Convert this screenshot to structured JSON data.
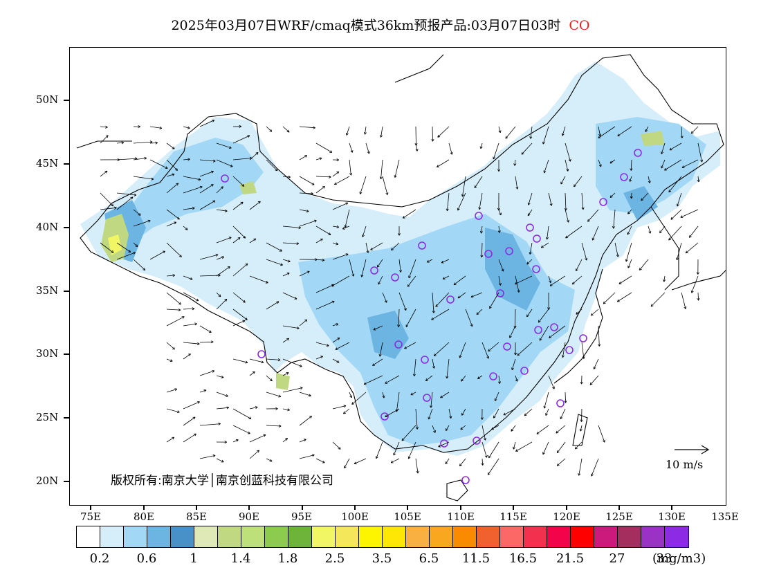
{
  "title": {
    "text": "2025年03月07日WRF/cmaq模式36km预报产品:03月07日03时",
    "species": "CO",
    "species_color": "#e8201e"
  },
  "axes": {
    "lat_labels": [
      "50N",
      "45N",
      "40N",
      "35N",
      "30N",
      "25N",
      "20N"
    ],
    "lon_labels": [
      "75E",
      "80E",
      "85E",
      "90E",
      "95E",
      "100E",
      "105E",
      "110E",
      "115E",
      "120E",
      "125E",
      "130E",
      "135E"
    ]
  },
  "copyright": "版权所有:南京大学│南京创蓝科技有限公司",
  "reference_vector": {
    "label": "10 m/s"
  },
  "colorbar": {
    "colors": [
      "#ffffff",
      "#d6eefa",
      "#a2d8f5",
      "#6cb5e3",
      "#4891c8",
      "#dfe9b8",
      "#c0d882",
      "#bde07a",
      "#8ccb4e",
      "#6fb43a",
      "#f1f664",
      "#f4e75a",
      "#fdf400",
      "#fee705",
      "#f9b041",
      "#f8a71e",
      "#fa8a00",
      "#f0612f",
      "#fb6865",
      "#f4304f",
      "#f3034a",
      "#fe0000",
      "#cc1a7c",
      "#a42e5d",
      "#9a32c6",
      "#8c2ae6"
    ],
    "labels": [
      "0.2",
      "0.6",
      "1",
      "1.4",
      "1.8",
      "2.5",
      "3.5",
      "6.5",
      "11.5",
      "16.5",
      "21.5",
      "27",
      "33"
    ],
    "unit": "(mg/m3)"
  },
  "colors": {
    "land_low": "#d6eefa",
    "land_mid": "#a2d8f5",
    "land_high": "#6cb5e3",
    "hotspot_green": "#c0d882",
    "hotspot_yellow": "#f1f664",
    "station_marker": "#8c2ae6"
  }
}
